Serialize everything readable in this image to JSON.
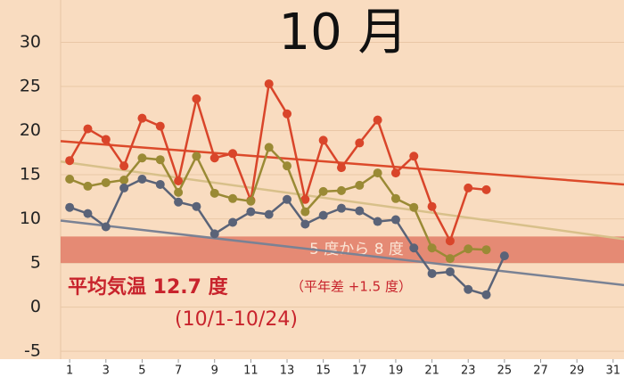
{
  "chart_data": {
    "type": "line",
    "title": "10 月",
    "annotations": [
      "平均気温 12.7 度",
      "（平年差 +1.5 度）",
      "(10/1-10/24)"
    ],
    "xlim": [
      0.5,
      31.6
    ],
    "xticks": [
      1,
      3,
      5,
      7,
      9,
      11,
      13,
      15,
      17,
      19,
      21,
      23,
      25,
      27,
      29,
      31
    ],
    "ylim": [
      -5.9,
      34.8
    ],
    "yticks": [
      -5,
      0,
      5,
      10,
      15,
      20,
      25,
      30
    ],
    "grid": true,
    "band": {
      "from": 5,
      "to": 8,
      "label": "5 度から 8 度",
      "color": "#e27b66"
    },
    "normals": [
      {
        "color": "#dc4a2a",
        "x": [
          0.5,
          31.6
        ],
        "values": [
          18.8,
          13.9
        ]
      },
      {
        "color": "#d8c08a",
        "x": [
          0.5,
          31.6
        ],
        "values": [
          16.5,
          7.7
        ]
      },
      {
        "color": "#7a8294",
        "x": [
          0.5,
          31.6
        ],
        "values": [
          9.8,
          2.5
        ]
      }
    ],
    "series": [
      {
        "color": "#d9452a",
        "x": [
          1,
          2,
          3,
          4,
          5,
          6,
          7,
          8,
          9,
          10,
          11,
          12,
          13,
          14,
          15,
          16,
          17,
          18,
          19,
          20,
          21,
          22,
          23,
          24
        ],
        "values": [
          16.6,
          20.2,
          19.0,
          16.0,
          21.4,
          20.5,
          14.3,
          23.6,
          16.9,
          17.4,
          12.1,
          25.3,
          21.9,
          12.2,
          18.9,
          15.8,
          18.6,
          21.2,
          15.2,
          17.1,
          11.4,
          7.5,
          13.5,
          13.3
        ]
      },
      {
        "color": "#9a8a35",
        "x": [
          1,
          2,
          3,
          4,
          5,
          6,
          7,
          8,
          9,
          10,
          11,
          12,
          13,
          14,
          15,
          16,
          17,
          18,
          19,
          20,
          21,
          22,
          23,
          24
        ],
        "values": [
          14.5,
          13.7,
          14.1,
          14.4,
          16.9,
          16.7,
          13.0,
          17.1,
          12.9,
          12.3,
          12.0,
          18.1,
          16.0,
          10.8,
          13.1,
          13.2,
          13.8,
          15.2,
          12.3,
          11.3,
          6.7,
          5.5,
          6.6,
          6.5
        ]
      },
      {
        "color": "#5a6378",
        "x": [
          1,
          2,
          3,
          4,
          5,
          6,
          7,
          8,
          9,
          10,
          11,
          12,
          13,
          14,
          15,
          16,
          17,
          18,
          19,
          20,
          21,
          22,
          23,
          24,
          25
        ],
        "values": [
          11.3,
          10.6,
          9.1,
          13.5,
          14.5,
          13.9,
          11.9,
          11.4,
          8.3,
          9.6,
          10.8,
          10.5,
          12.2,
          9.4,
          10.4,
          11.2,
          10.9,
          9.7,
          9.9,
          6.7,
          3.8,
          4.0,
          2.0,
          1.4,
          5.8
        ]
      }
    ]
  }
}
